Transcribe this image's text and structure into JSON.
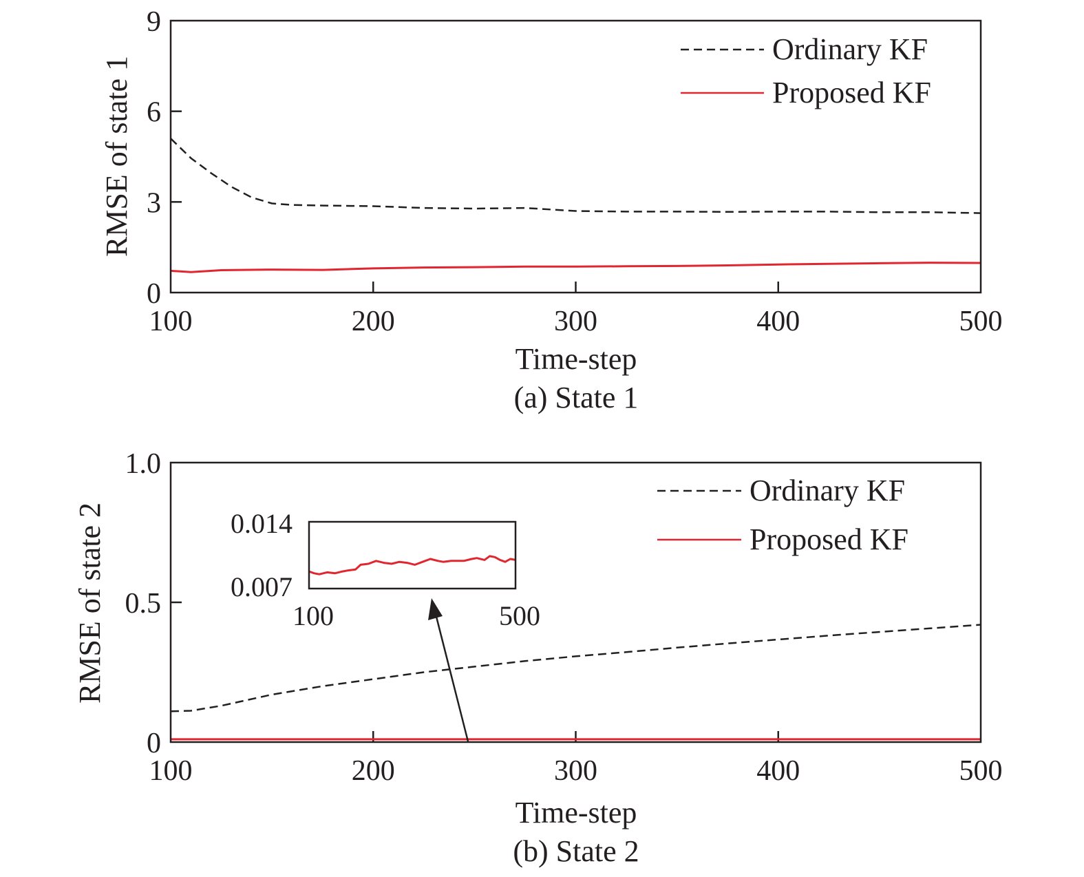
{
  "chart_data": [
    {
      "type": "line",
      "caption": "(a) State 1",
      "xlabel": "Time-step",
      "ylabel": "RMSE of state 1",
      "xlim": [
        100,
        500
      ],
      "ylim": [
        0,
        9
      ],
      "xticks": [
        100,
        200,
        300,
        400,
        500
      ],
      "yticks": [
        0,
        3,
        6,
        9
      ],
      "xtick_labels": [
        "100",
        "200",
        "300",
        "400",
        "500"
      ],
      "ytick_labels": [
        "0",
        "3",
        "6",
        "9"
      ],
      "legend_position": "top-right",
      "series": [
        {
          "name": "Ordinary KF",
          "style": "dashed",
          "color": "#231f20",
          "x": [
            100,
            110,
            120,
            130,
            140,
            150,
            160,
            175,
            200,
            225,
            250,
            275,
            300,
            325,
            350,
            375,
            400,
            425,
            450,
            475,
            500
          ],
          "y": [
            5.1,
            4.45,
            3.95,
            3.5,
            3.15,
            2.95,
            2.9,
            2.88,
            2.86,
            2.8,
            2.78,
            2.8,
            2.7,
            2.68,
            2.68,
            2.67,
            2.68,
            2.68,
            2.66,
            2.66,
            2.63
          ]
        },
        {
          "name": "Proposed KF",
          "style": "solid",
          "color": "#e0262e",
          "x": [
            100,
            110,
            125,
            150,
            175,
            200,
            225,
            250,
            275,
            300,
            325,
            350,
            375,
            400,
            425,
            450,
            475,
            500
          ],
          "y": [
            0.72,
            0.68,
            0.74,
            0.76,
            0.75,
            0.8,
            0.83,
            0.84,
            0.86,
            0.86,
            0.87,
            0.88,
            0.9,
            0.93,
            0.95,
            0.97,
            0.99,
            0.98
          ]
        }
      ]
    },
    {
      "type": "line",
      "caption": "(b) State 2",
      "xlabel": "Time-step",
      "ylabel": "RMSE of state 2",
      "xlim": [
        100,
        500
      ],
      "ylim": [
        0,
        1.0
      ],
      "xticks": [
        100,
        200,
        300,
        400,
        500
      ],
      "yticks": [
        0,
        0.5,
        1.0
      ],
      "xtick_labels": [
        "100",
        "200",
        "300",
        "400",
        "500"
      ],
      "ytick_labels": [
        "0",
        "0.5",
        "1.0"
      ],
      "legend_position": "top-right",
      "series": [
        {
          "name": "Ordinary KF",
          "style": "dashed",
          "color": "#231f20",
          "x": [
            100,
            110,
            125,
            150,
            175,
            200,
            225,
            250,
            275,
            300,
            325,
            350,
            375,
            400,
            425,
            450,
            475,
            500
          ],
          "y": [
            0.11,
            0.112,
            0.13,
            0.17,
            0.2,
            0.225,
            0.25,
            0.27,
            0.29,
            0.307,
            0.322,
            0.338,
            0.353,
            0.367,
            0.381,
            0.394,
            0.407,
            0.42
          ]
        },
        {
          "name": "Proposed KF",
          "style": "solid",
          "color": "#e0262e",
          "x": [
            100,
            500
          ],
          "y": [
            0.01,
            0.01
          ]
        }
      ],
      "inset": {
        "xlim": [
          100,
          500
        ],
        "ylim": [
          0.007,
          0.014
        ],
        "xtick_labels": [
          "100",
          "500"
        ],
        "ytick_labels": [
          "0.007",
          "0.014"
        ],
        "series": [
          {
            "name": "Proposed KF",
            "color": "#e0262e",
            "x": [
              100,
              110,
              120,
              135,
              150,
              165,
              175,
              190,
              200,
              215,
              230,
              245,
              260,
              275,
              290,
              305,
              320,
              335,
              350,
              360,
              375,
              390,
              400,
              415,
              425,
              440,
              450,
              460,
              470,
              480,
              490,
              500
            ],
            "y": [
              0.0088,
              0.0086,
              0.0085,
              0.0087,
              0.0086,
              0.0088,
              0.0089,
              0.009,
              0.0095,
              0.0096,
              0.0099,
              0.0097,
              0.0096,
              0.0098,
              0.0097,
              0.0095,
              0.0098,
              0.0101,
              0.0099,
              0.0098,
              0.0099,
              0.0099,
              0.0099,
              0.0101,
              0.0102,
              0.01,
              0.0104,
              0.0103,
              0.01,
              0.0098,
              0.0101,
              0.01
            ]
          }
        ]
      }
    }
  ]
}
